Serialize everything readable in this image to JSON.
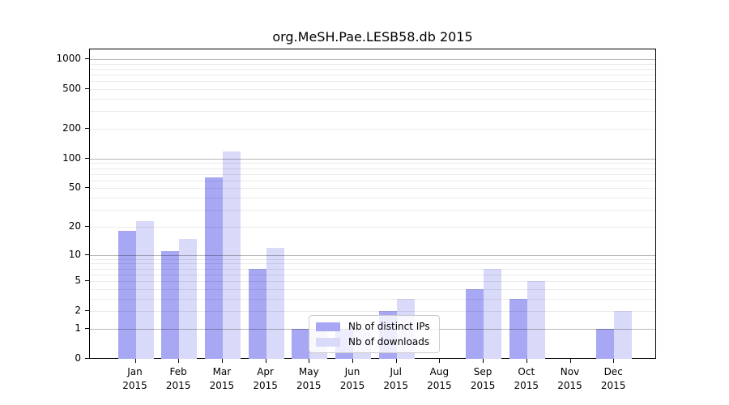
{
  "chart_data": {
    "type": "bar",
    "title": "org.MeSH.Pae.LESB58.db 2015",
    "scale": "log1p",
    "categories": [
      "Jan",
      "Feb",
      "Mar",
      "Apr",
      "May",
      "Jun",
      "Jul",
      "Aug",
      "Sep",
      "Oct",
      "Nov",
      "Dec"
    ],
    "year": "2015",
    "series": [
      {
        "name": "Nb of distinct IPs",
        "color": "#a7a7f4",
        "values": [
          18,
          11,
          65,
          7,
          1,
          1,
          2,
          0,
          4,
          3,
          0,
          1
        ]
      },
      {
        "name": "Nb of downloads",
        "color": "#d9d9f9",
        "values": [
          23,
          15,
          118,
          12,
          1,
          1,
          3,
          0,
          7,
          5,
          0,
          2
        ]
      }
    ],
    "yticks": [
      0,
      1,
      2,
      5,
      10,
      20,
      50,
      100,
      200,
      500,
      1000
    ],
    "ylim": [
      0,
      1000
    ],
    "grid": true,
    "legend_position": "lower center"
  },
  "colors": {
    "grid_major": "#b8b8b8",
    "grid_minor": "#ebebeb",
    "spine": "#000000",
    "background": "#ffffff"
  }
}
